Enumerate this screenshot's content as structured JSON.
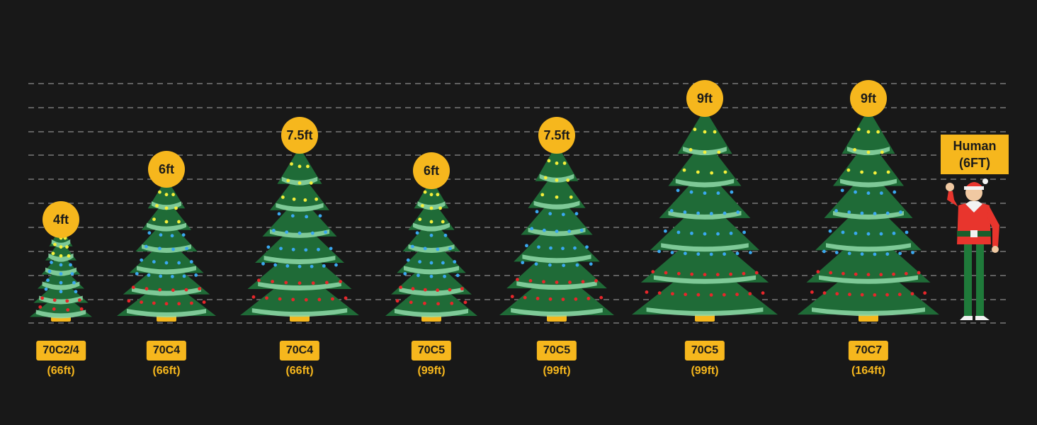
{
  "trees": [
    {
      "height": "4ft",
      "model": "70C2/4",
      "length": "(66ft)"
    },
    {
      "height": "6ft",
      "model": "70C4",
      "length": "(66ft)"
    },
    {
      "height": "7.5ft",
      "model": "70C4",
      "length": "(66ft)"
    },
    {
      "height": "6ft",
      "model": "70C5",
      "length": "(99ft)"
    },
    {
      "height": "7.5ft",
      "model": "70C5",
      "length": "(99ft)"
    },
    {
      "height": "9ft",
      "model": "70C5",
      "length": "(99ft)"
    },
    {
      "height": "9ft",
      "model": "70C7",
      "length": "(164ft)"
    }
  ],
  "human": {
    "line1": "Human",
    "line2": "(6FT)"
  },
  "colors": {
    "background": "#181818",
    "badge": "#f6b71d",
    "tree_dark": "#1f6b37",
    "tree_light": "#8fd9a8",
    "light_yellow": "#f3ef3a",
    "light_blue": "#3aa8f0",
    "light_red": "#e8262a"
  }
}
